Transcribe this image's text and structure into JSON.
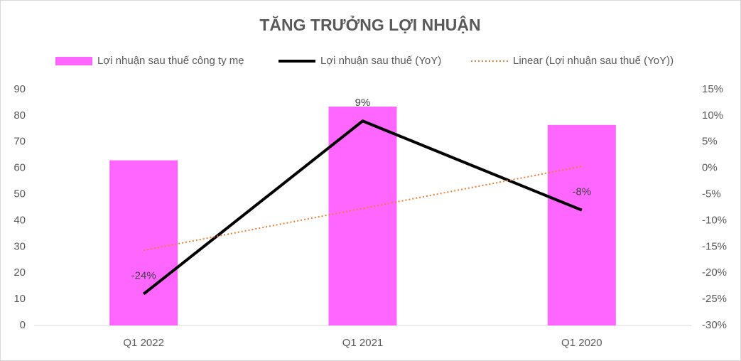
{
  "chart_data": {
    "type": "combo",
    "title": "TĂNG TRƯỞNG LỢI NHUẬN",
    "categories": [
      "Q1 2022",
      "Q1 2021",
      "Q1 2020"
    ],
    "series": [
      {
        "name": "Lợi nhuận sau thuế công ty mẹ",
        "type": "bar",
        "axis": "y",
        "color": "#ff66ff",
        "values": [
          63,
          83.5,
          76.5
        ]
      },
      {
        "name": "Lợi nhuận sau thuế (YoY)",
        "type": "line",
        "axis": "y2",
        "color": "#000000",
        "values": [
          -24,
          9,
          -8
        ],
        "value_labels": [
          "-24%",
          "9%",
          "-8%"
        ]
      },
      {
        "name": "Linear (Lợi nhuận sau thuế (YoY))",
        "type": "line",
        "style": "dotted",
        "axis": "y2",
        "color": "#ed7d31",
        "values": [
          -15.67,
          -7.67,
          0.33
        ]
      }
    ],
    "ylim": [
      0,
      90
    ],
    "yticks": [
      0,
      10,
      20,
      30,
      40,
      50,
      60,
      70,
      80,
      90
    ],
    "y2lim": [
      -30,
      15
    ],
    "y2ticks": [
      {
        "value": -30,
        "label": "-30%"
      },
      {
        "value": -25,
        "label": "-25%"
      },
      {
        "value": -20,
        "label": "-20%"
      },
      {
        "value": -15,
        "label": "-15%"
      },
      {
        "value": -10,
        "label": "-10%"
      },
      {
        "value": -5,
        "label": "-5%"
      },
      {
        "value": 0,
        "label": "0%"
      },
      {
        "value": 5,
        "label": "5%"
      },
      {
        "value": 10,
        "label": "10%"
      },
      {
        "value": 15,
        "label": "15%"
      }
    ],
    "grid": false,
    "legend": "top"
  }
}
